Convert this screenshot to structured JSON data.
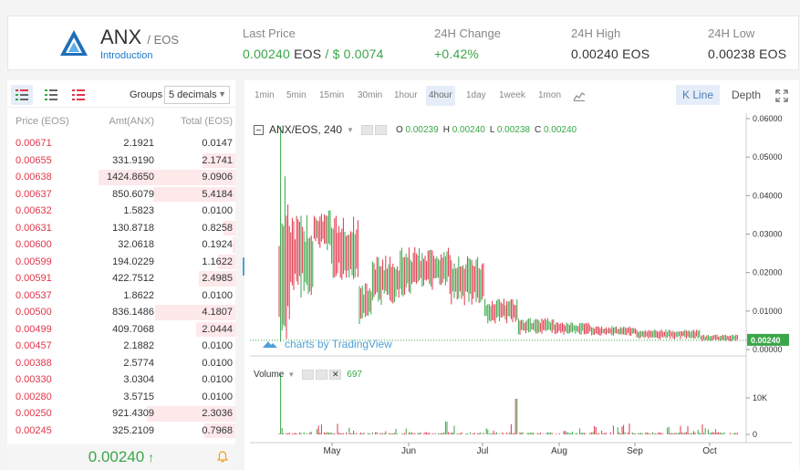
{
  "header": {
    "base": "ANX",
    "quote": "/ EOS",
    "intro_link": "Introduction",
    "last_price": {
      "label": "Last Price",
      "value": "0.00240",
      "unit": "EOS",
      "sep": "/",
      "usd": "$ 0.0074"
    },
    "change": {
      "label": "24H Change",
      "value": "+0.42%"
    },
    "high": {
      "label": "24H High",
      "value": "0.00240 EOS"
    },
    "low": {
      "label": "24H Low",
      "value": "0.00238 EOS"
    }
  },
  "book": {
    "groups_label": "Groups",
    "groups_value": "5 decimals",
    "columns": [
      "Price (EOS)",
      "Amt(ANX)",
      "Total (EOS)"
    ],
    "rows": [
      {
        "price": "0.00671",
        "amt": "2.1921",
        "total": "0.0147",
        "depth": 0.0
      },
      {
        "price": "0.00655",
        "amt": "331.9190",
        "total": "2.1741",
        "depth": 0.24
      },
      {
        "price": "0.00638",
        "amt": "1424.8650",
        "total": "9.0906",
        "depth": 1.0
      },
      {
        "price": "0.00637",
        "amt": "850.6079",
        "total": "5.4184",
        "depth": 0.6
      },
      {
        "price": "0.00632",
        "amt": "1.5823",
        "total": "0.0100",
        "depth": 0.0
      },
      {
        "price": "0.00631",
        "amt": "130.8718",
        "total": "0.8258",
        "depth": 0.09
      },
      {
        "price": "0.00600",
        "amt": "32.0618",
        "total": "0.1924",
        "depth": 0.02
      },
      {
        "price": "0.00599",
        "amt": "194.0229",
        "total": "1.1622",
        "depth": 0.13
      },
      {
        "price": "0.00591",
        "amt": "422.7512",
        "total": "2.4985",
        "depth": 0.27
      },
      {
        "price": "0.00537",
        "amt": "1.8622",
        "total": "0.0100",
        "depth": 0.0
      },
      {
        "price": "0.00500",
        "amt": "836.1486",
        "total": "4.1807",
        "depth": 0.59
      },
      {
        "price": "0.00499",
        "amt": "409.7068",
        "total": "2.0444",
        "depth": 0.29
      },
      {
        "price": "0.00457",
        "amt": "2.1882",
        "total": "0.0100",
        "depth": 0.0
      },
      {
        "price": "0.00388",
        "amt": "2.5774",
        "total": "0.0100",
        "depth": 0.0
      },
      {
        "price": "0.00330",
        "amt": "3.0304",
        "total": "0.0100",
        "depth": 0.0
      },
      {
        "price": "0.00280",
        "amt": "3.5715",
        "total": "0.0100",
        "depth": 0.0
      },
      {
        "price": "0.00250",
        "amt": "921.4309",
        "total": "2.3036",
        "depth": 0.65
      },
      {
        "price": "0.00245",
        "amt": "325.2109",
        "total": "0.7968",
        "depth": 0.23
      }
    ],
    "last_price": "0.00240",
    "last_arrow": "↑"
  },
  "chart": {
    "timeframes": [
      "1min",
      "5min",
      "15min",
      "30min",
      "1hour",
      "4hour",
      "1day",
      "1week",
      "1mon"
    ],
    "active_timeframe": "4hour",
    "kline_label": "K Line",
    "depth_label": "Depth",
    "symbol": "ANX/EOS, 240",
    "ohlc": {
      "o": "0.00239",
      "h": "0.00240",
      "l": "0.00238",
      "c": "0.00240"
    },
    "watermark": "charts by TradingView",
    "volume_label": "Volume",
    "volume_value": "697",
    "price_axis": [
      "0.06000",
      "0.05000",
      "0.04000",
      "0.03000",
      "0.02000",
      "0.01000",
      "0.00000"
    ],
    "current_price": "0.00240",
    "volume_axis": [
      "10K",
      "0"
    ],
    "months": [
      "May",
      "Jun",
      "Jul",
      "Aug",
      "Sep",
      "Oct"
    ],
    "colors": {
      "up": "#3aa648",
      "down": "#e1354a",
      "accent": "#4ea0d8"
    }
  }
}
